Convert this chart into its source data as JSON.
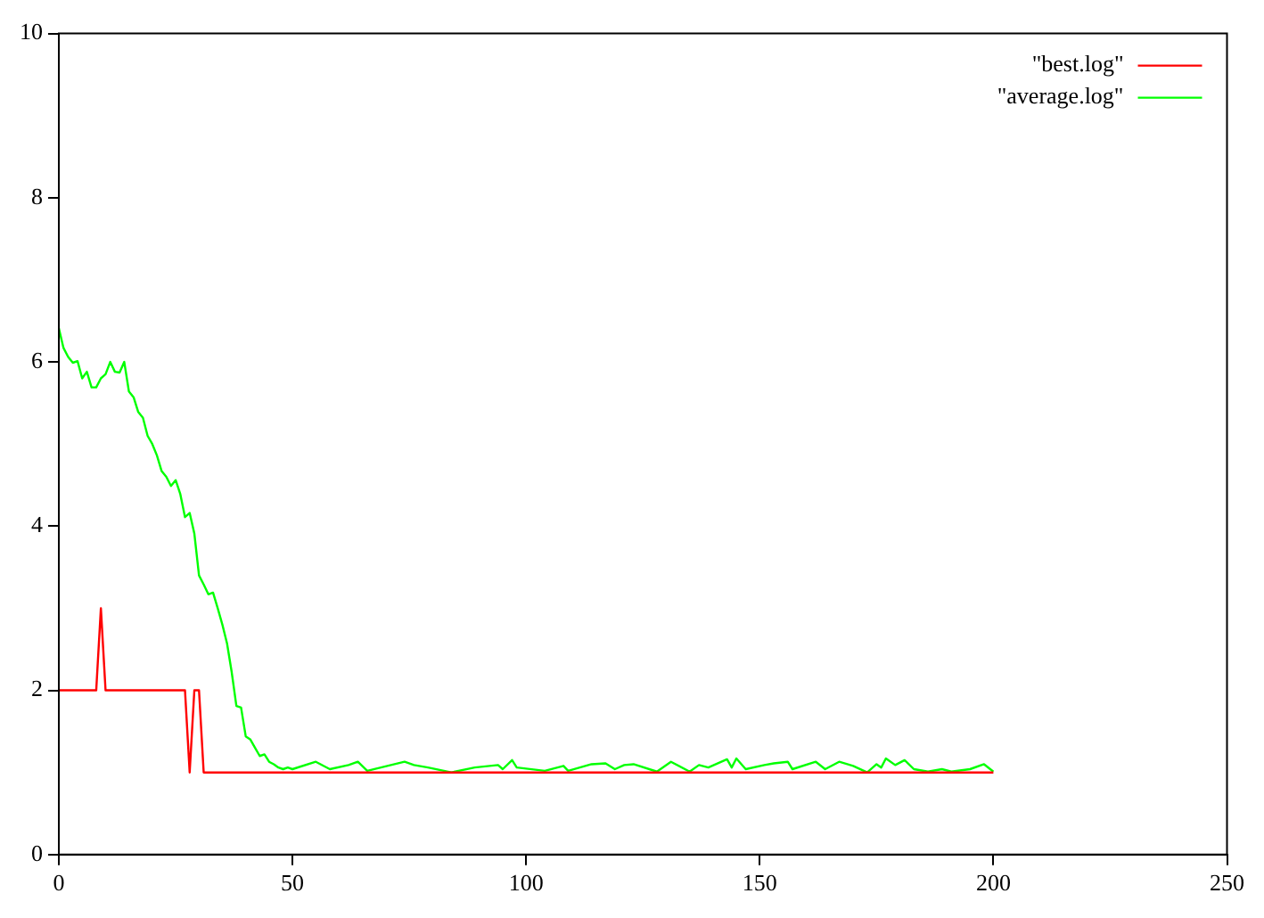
{
  "chart_data": {
    "type": "line",
    "xlim": [
      0,
      250
    ],
    "ylim": [
      0,
      10
    ],
    "xticks": [
      0,
      50,
      100,
      150,
      200,
      250
    ],
    "yticks": [
      0,
      2,
      4,
      6,
      8,
      10
    ],
    "grid": false,
    "legend": "top right",
    "marker": "none",
    "line_style": "solid",
    "series": [
      {
        "name": "\"best.log\"",
        "color": "#ff0000",
        "x": [
          0,
          8,
          9,
          10,
          27,
          28,
          29,
          30,
          31,
          200
        ],
        "values": [
          2,
          2,
          3,
          2,
          2,
          1,
          2,
          2,
          1,
          1
        ]
      },
      {
        "name": "\"average.log\"",
        "color": "#00ff00",
        "x": [
          0,
          1,
          2,
          3,
          4,
          5,
          6,
          7,
          8,
          9,
          10,
          11,
          12,
          13,
          14,
          15,
          16,
          17,
          18,
          19,
          20,
          21,
          22,
          23,
          24,
          25,
          26,
          27,
          28,
          29,
          30,
          31,
          32,
          33,
          34,
          35,
          36,
          37,
          38,
          39,
          40,
          41,
          42,
          43,
          44,
          45,
          46,
          47,
          48,
          49,
          50,
          55,
          58,
          62,
          64,
          66,
          74,
          76,
          79,
          84,
          89,
          94,
          95,
          97,
          98,
          104,
          108,
          109,
          114,
          117,
          119,
          121,
          123,
          128,
          131,
          135,
          137,
          139,
          143,
          144,
          145,
          147,
          151,
          153,
          156,
          157,
          162,
          164,
          167,
          170,
          173,
          175,
          176,
          177,
          179,
          181,
          183,
          186,
          189,
          191,
          195,
          198,
          200
        ],
        "values": [
          6.41,
          6.17,
          6.06,
          5.99,
          6.01,
          5.8,
          5.88,
          5.69,
          5.69,
          5.8,
          5.85,
          6.0,
          5.88,
          5.87,
          6.0,
          5.64,
          5.57,
          5.39,
          5.32,
          5.1,
          5.0,
          4.86,
          4.67,
          4.6,
          4.49,
          4.56,
          4.39,
          4.11,
          4.16,
          3.91,
          3.4,
          3.29,
          3.17,
          3.19,
          3.0,
          2.8,
          2.57,
          2.22,
          1.81,
          1.79,
          1.44,
          1.4,
          1.3,
          1.2,
          1.22,
          1.13,
          1.1,
          1.06,
          1.04,
          1.06,
          1.04,
          1.13,
          1.04,
          1.09,
          1.13,
          1.02,
          1.13,
          1.09,
          1.06,
          1.0,
          1.06,
          1.09,
          1.04,
          1.15,
          1.06,
          1.02,
          1.08,
          1.02,
          1.1,
          1.11,
          1.04,
          1.09,
          1.1,
          1.01,
          1.13,
          1.01,
          1.09,
          1.06,
          1.16,
          1.06,
          1.17,
          1.04,
          1.09,
          1.11,
          1.13,
          1.04,
          1.13,
          1.04,
          1.13,
          1.08,
          1.0,
          1.1,
          1.06,
          1.17,
          1.09,
          1.15,
          1.04,
          1.01,
          1.04,
          1.01,
          1.04,
          1.1,
          1.01
        ]
      }
    ]
  }
}
